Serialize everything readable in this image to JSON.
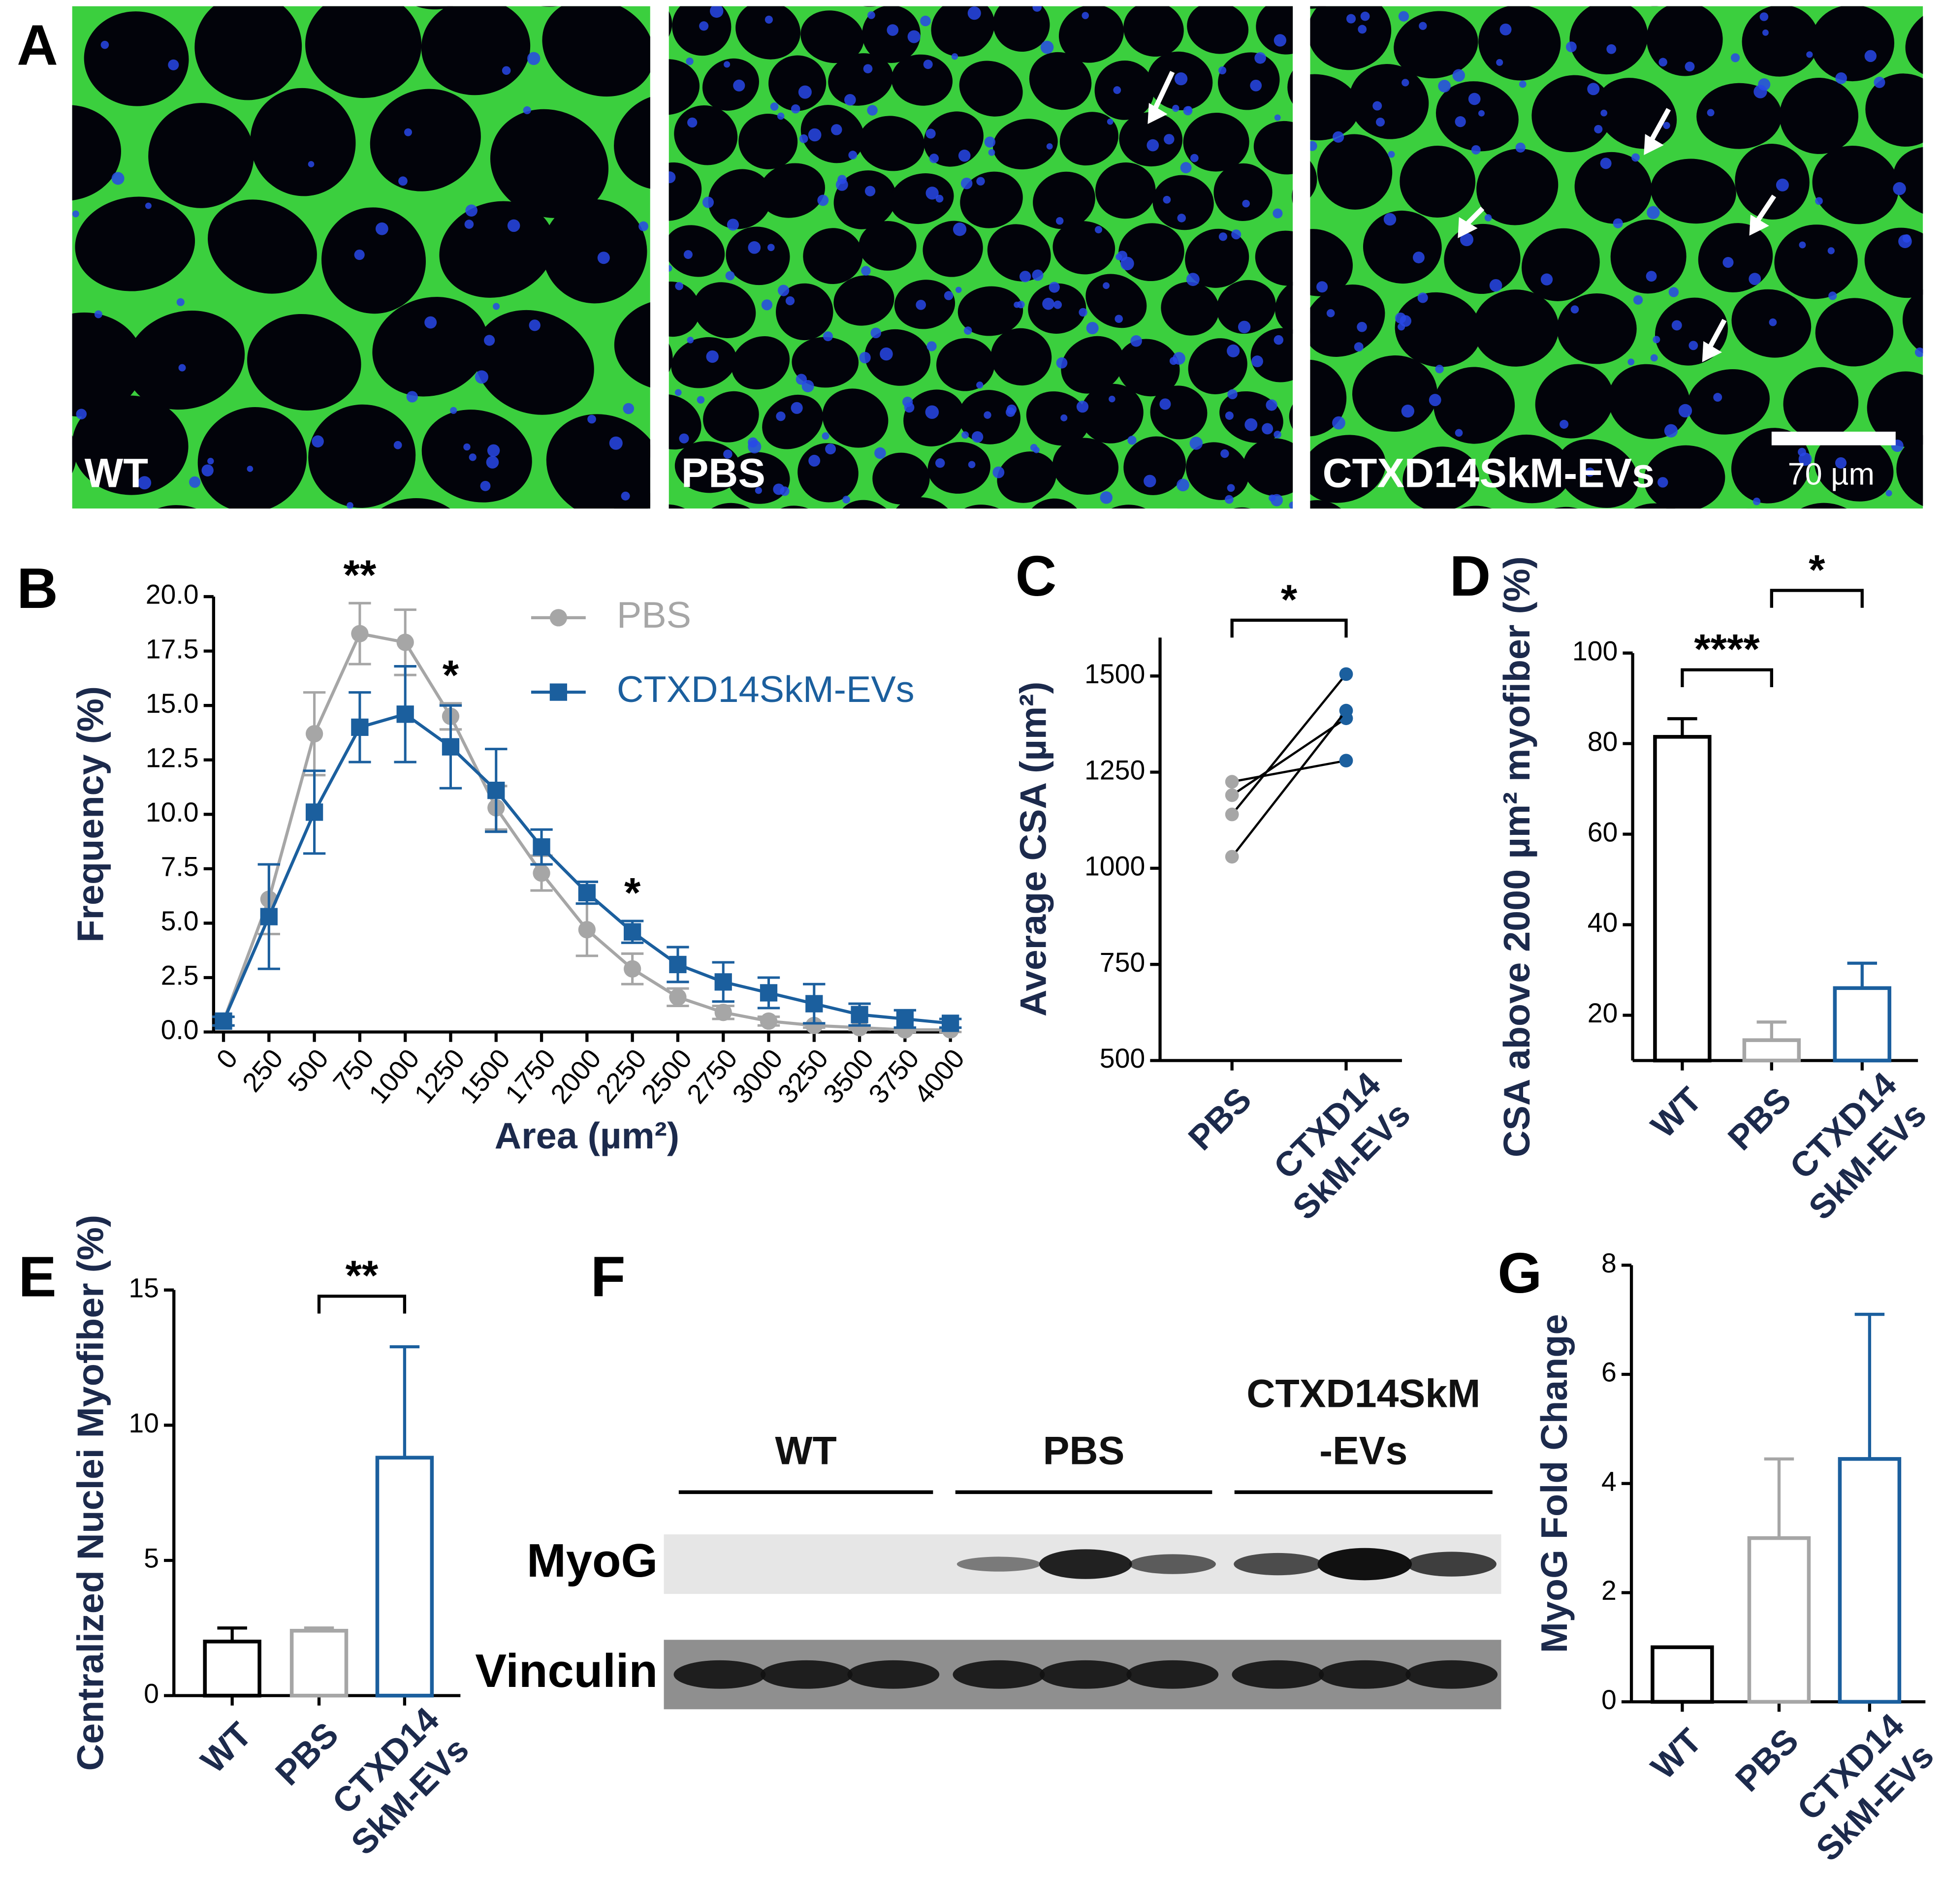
{
  "panel_a": {
    "label": "A",
    "images": [
      "WT",
      "PBS",
      "CTXD14SkM-EVs"
    ],
    "scale_bar": "70 µm"
  },
  "chart_data": [
    {
      "panel_label": "B",
      "type": "line",
      "x": [
        0,
        250,
        500,
        750,
        1000,
        1250,
        1500,
        1750,
        2000,
        2250,
        2500,
        2750,
        3000,
        3250,
        3500,
        3750,
        4000
      ],
      "xlim": [
        0,
        4000
      ],
      "xticks": [
        0,
        250,
        500,
        750,
        1000,
        1250,
        1500,
        1750,
        2000,
        2250,
        2500,
        2750,
        3000,
        3250,
        3500,
        3750,
        4000
      ],
      "ylim": [
        0,
        20
      ],
      "yticks": [
        {
          "value": 0,
          "label": "0.0"
        },
        2.5,
        {
          "value": 5,
          "label": "5.0"
        },
        7.5,
        {
          "value": 10,
          "label": "10.0"
        },
        12.5,
        {
          "value": 15,
          "label": "15.0"
        },
        17.5,
        {
          "value": 20,
          "label": "20.0"
        }
      ],
      "xlabel": "Area (µm²)",
      "ylabel": "Frequency (%)",
      "legend": "top-right",
      "series": [
        {
          "name": "PBS",
          "color": "#a6a6a6",
          "marker": "circle",
          "values": [
            0.5,
            6.1,
            13.7,
            18.3,
            17.9,
            14.5,
            10.3,
            7.3,
            4.7,
            2.9,
            1.6,
            0.9,
            0.5,
            0.3,
            0.2,
            0.1,
            0.1
          ],
          "errors": [
            0.2,
            1.6,
            1.9,
            1.4,
            1.5,
            0.6,
            1.0,
            0.8,
            1.2,
            0.7,
            0.4,
            0.3,
            0.2,
            0.1,
            0.1,
            0.1,
            0.1
          ]
        },
        {
          "name": "CTXD14SkM-EVs",
          "color": "#1b5f9e",
          "marker": "square",
          "values": [
            0.5,
            5.3,
            10.1,
            14.0,
            14.6,
            13.1,
            11.1,
            8.5,
            6.4,
            4.6,
            3.1,
            2.3,
            1.8,
            1.3,
            0.8,
            0.6,
            0.4
          ],
          "errors": [
            0.2,
            2.4,
            1.9,
            1.6,
            2.2,
            1.9,
            1.9,
            0.8,
            0.5,
            0.5,
            0.8,
            0.9,
            0.7,
            0.9,
            0.5,
            0.4,
            0.2
          ]
        }
      ],
      "annotations": [
        {
          "x": 750,
          "text": "**"
        },
        {
          "x": 1250,
          "text": "*"
        },
        {
          "x": 2250,
          "text": "*"
        }
      ]
    },
    {
      "panel_label": "C",
      "type": "paired",
      "categories": [
        "PBS",
        "CTXD14 SkM-EVs"
      ],
      "colors": [
        "#a6a6a6",
        "#1b5f9e"
      ],
      "pairs": [
        [
          1225,
          1280
        ],
        [
          1190,
          1390
        ],
        [
          1140,
          1505
        ],
        [
          1030,
          1410
        ]
      ],
      "ylim": [
        500,
        1600
      ],
      "yticks": [
        500,
        750,
        1000,
        1250,
        1500
      ],
      "ylabel": "Average CSA (µm²)",
      "significance": [
        {
          "from": 0,
          "to": 1,
          "text": "*"
        }
      ]
    },
    {
      "panel_label": "D",
      "type": "bar",
      "categories": [
        "WT",
        "PBS",
        "CTXD14 SkM-EVs"
      ],
      "colors": [
        "#000000",
        "#a6a6a6",
        "#1b5f9e"
      ],
      "values": [
        81.5,
        14.5,
        26
      ],
      "errors": [
        4,
        4,
        5.5
      ],
      "ylim": [
        10,
        100
      ],
      "yticks": [
        20,
        40,
        60,
        80,
        100
      ],
      "ylabel": "CSA above 2000 µm² myofiber (%)",
      "significance": [
        {
          "from": 0,
          "to": 1,
          "text": "****"
        },
        {
          "from": 1,
          "to": 2,
          "text": "*"
        }
      ]
    },
    {
      "panel_label": "E",
      "type": "bar",
      "categories": [
        "WT",
        "PBS",
        "CTXD14 SkM-EVs"
      ],
      "colors": [
        "#000000",
        "#a6a6a6",
        "#1b5f9e"
      ],
      "values": [
        2.0,
        2.4,
        8.8
      ],
      "errors": [
        0.5,
        0.1,
        4.1
      ],
      "ylim": [
        0,
        15
      ],
      "yticks": [
        0,
        5,
        10,
        15
      ],
      "ylabel": "Centralized Nuclei Myofiber (%)",
      "significance": [
        {
          "from": 1,
          "to": 2,
          "text": "**"
        }
      ]
    },
    {
      "panel_label": "G",
      "type": "bar",
      "categories": [
        "WT",
        "PBS",
        "CTXD14 SkM-EVs"
      ],
      "colors": [
        "#000000",
        "#a6a6a6",
        "#1b5f9e"
      ],
      "values": [
        1.0,
        3.0,
        4.45
      ],
      "errors": [
        0,
        1.45,
        2.65
      ],
      "ylim": [
        0,
        8
      ],
      "yticks": [
        0,
        2,
        4,
        6,
        8
      ],
      "ylabel": "MyoG Fold Change",
      "significance": []
    }
  ],
  "panel_f": {
    "label": "F",
    "groups": [
      "WT",
      "PBS",
      "CTXD14SkM -EVs"
    ],
    "rows": [
      "MyoG",
      "Vinculin"
    ]
  }
}
